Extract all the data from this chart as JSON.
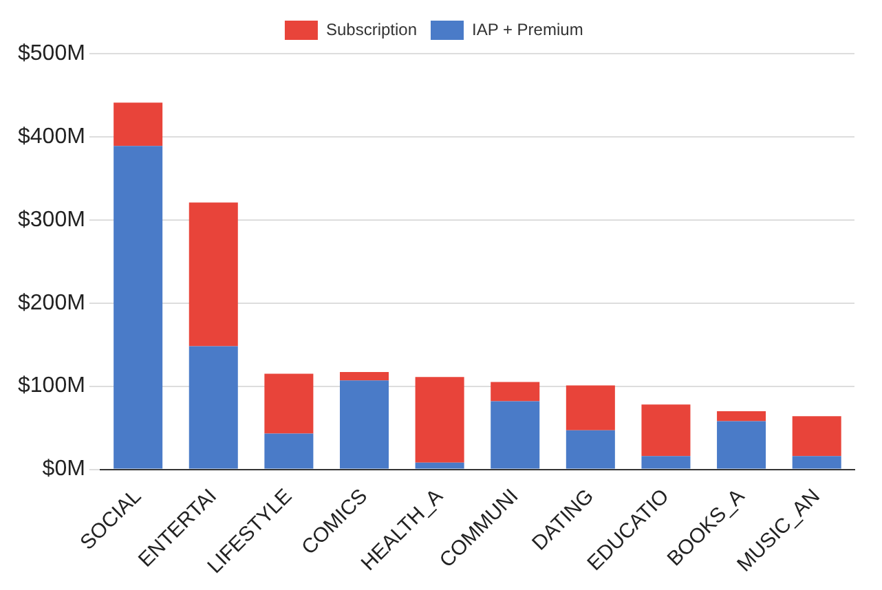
{
  "chart_data": {
    "type": "bar",
    "stacked": true,
    "categories": [
      "SOCIAL",
      "ENTERTAI",
      "LIFESTYLE",
      "COMICS",
      "HEALTH_A",
      "COMMUNI",
      "DATING",
      "EDUCATIO",
      "BOOKS_A",
      "MUSIC_AN"
    ],
    "series": [
      {
        "name": "IAP + Premium",
        "color": "#4a7bc8",
        "values": [
          389,
          148,
          43,
          107,
          8,
          82,
          47,
          16,
          58,
          16
        ]
      },
      {
        "name": "Subscription",
        "color": "#e8443a",
        "values": [
          52,
          173,
          72,
          10,
          103,
          23,
          54,
          62,
          12,
          48
        ]
      }
    ],
    "ylim": [
      0,
      500
    ],
    "yticks": [
      {
        "value": 0,
        "label": "$0M"
      },
      {
        "value": 100,
        "label": "$100M"
      },
      {
        "value": 200,
        "label": "$200M"
      },
      {
        "value": 300,
        "label": "$300M"
      },
      {
        "value": 400,
        "label": "$400M"
      },
      {
        "value": 500,
        "label": "$500M"
      }
    ],
    "grid": "y",
    "legend": "top"
  }
}
